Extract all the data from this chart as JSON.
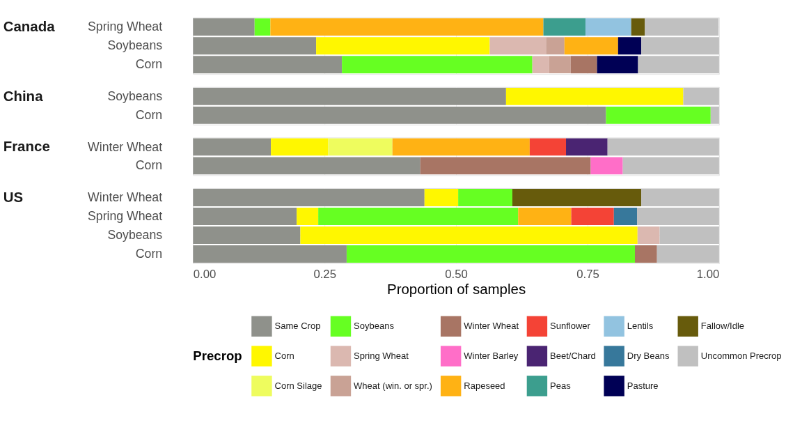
{
  "chart_data": [
    {
      "type": "bar",
      "orientation": "horizontal",
      "stacked": true,
      "title": "Canada",
      "categories": [
        "Spring Wheat",
        "Soybeans",
        "Corn"
      ],
      "xlim": [
        0,
        1
      ],
      "xticks": [
        0,
        0.25,
        0.5,
        0.75,
        1
      ],
      "tick_labels": "y",
      "grid": true,
      "series": [
        {
          "color": "#8f918b",
          "values": [
            0.117,
            0.234,
            0.283
          ]
        },
        {
          "color": "#fff700",
          "values": [
            null,
            0.33,
            null
          ]
        },
        {
          "color": "#66ff22",
          "values": [
            0.03,
            null,
            0.362
          ]
        },
        {
          "color": "#dbb8b0",
          "values": [
            null,
            0.107,
            0.032
          ]
        },
        {
          "color": "#c9a295",
          "values": [
            null,
            0.035,
            0.041
          ]
        },
        {
          "color": "#a87564",
          "values": [
            null,
            null,
            0.05
          ]
        },
        {
          "color": "#ffb214",
          "values": [
            0.519,
            0.102,
            null
          ]
        },
        {
          "color": "#3c9e8e",
          "values": [
            0.08,
            null,
            null
          ]
        },
        {
          "color": "#92c3e0",
          "values": [
            0.087,
            null,
            null
          ]
        },
        {
          "color": "#000055",
          "values": [
            null,
            0.044,
            0.078
          ]
        },
        {
          "color": "#675b0c",
          "values": [
            0.026,
            null,
            null
          ]
        },
        {
          "color": "#c0c0c0",
          "values": [
            0.14,
            0.148,
            0.154
          ]
        }
      ]
    },
    {
      "type": "bar",
      "orientation": "horizontal",
      "stacked": true,
      "title": "China",
      "categories": [
        "Soybeans",
        "Corn"
      ],
      "xlim": [
        0,
        1
      ],
      "xticks": [
        0,
        0.25,
        0.5,
        0.75,
        1
      ],
      "tick_labels": "y",
      "grid": true,
      "series": [
        {
          "color": "#8f918b",
          "values": [
            0.595,
            0.785
          ]
        },
        {
          "color": "#fff700",
          "values": [
            0.337,
            null
          ]
        },
        {
          "color": "#66ff22",
          "values": [
            null,
            0.199
          ]
        },
        {
          "color": "#c0c0c0",
          "values": [
            0.068,
            0.016
          ]
        }
      ]
    },
    {
      "type": "bar",
      "orientation": "horizontal",
      "stacked": true,
      "title": "France",
      "categories": [
        "Winter Wheat",
        "Corn"
      ],
      "xlim": [
        0,
        1
      ],
      "xticks": [
        0,
        0.25,
        0.5,
        0.75,
        1
      ],
      "tick_labels": "y",
      "grid": true,
      "series": [
        {
          "color": "#8f918b",
          "values": [
            0.148,
            0.432
          ]
        },
        {
          "color": "#fff700",
          "values": [
            0.109,
            null
          ]
        },
        {
          "color": "#eefc5e",
          "values": [
            0.122,
            null
          ]
        },
        {
          "color": "#a87564",
          "values": [
            null,
            0.324
          ]
        },
        {
          "color": "#ff6ec8",
          "values": [
            null,
            0.061
          ]
        },
        {
          "color": "#ffb214",
          "values": [
            0.261,
            null
          ]
        },
        {
          "color": "#f44336",
          "values": [
            0.069,
            null
          ]
        },
        {
          "color": "#4a2472",
          "values": [
            0.079,
            null
          ]
        },
        {
          "color": "#c0c0c0",
          "values": [
            0.212,
            0.183
          ]
        }
      ]
    },
    {
      "type": "bar",
      "orientation": "horizontal",
      "stacked": true,
      "title": "US",
      "categories": [
        "Winter Wheat",
        "Spring Wheat",
        "Soybeans",
        "Corn"
      ],
      "xlabel": "Proportion of samples",
      "legend_title": "Precrop",
      "xlim": [
        0,
        1
      ],
      "xticks": [
        {
          "value": 0,
          "label": "0.00"
        },
        {
          "value": 0.25,
          "label": "0.25"
        },
        {
          "value": 0.5,
          "label": "0.50"
        },
        {
          "value": 0.75,
          "label": "0.75"
        },
        {
          "value": 1,
          "label": "1.00"
        }
      ],
      "grid": true,
      "legend": "bottom",
      "series": [
        {
          "name": "Same Crop",
          "color": "#8f918b",
          "values": [
            0.44,
            0.197,
            0.204,
            0.292
          ]
        },
        {
          "name": "Corn",
          "color": "#fff700",
          "values": [
            0.064,
            0.041,
            0.641,
            null
          ]
        },
        {
          "name": "Corn Silage",
          "color": "#eefc5e",
          "values": [
            null,
            null,
            null,
            null
          ]
        },
        {
          "name": "Soybeans",
          "color": "#66ff22",
          "values": [
            0.103,
            0.38,
            null,
            0.548
          ]
        },
        {
          "name": "Spring Wheat",
          "color": "#dbb8b0",
          "values": [
            null,
            null,
            0.042,
            null
          ]
        },
        {
          "name": "Wheat (win. or spr.)",
          "color": "#c9a295",
          "values": [
            null,
            null,
            null,
            null
          ]
        },
        {
          "name": "Winter Wheat",
          "color": "#a87564",
          "values": [
            null,
            null,
            null,
            0.042
          ]
        },
        {
          "name": "Winter Barley",
          "color": "#ff6ec8",
          "values": [
            null,
            null,
            null,
            null
          ]
        },
        {
          "name": "Rapeseed",
          "color": "#ffb214",
          "values": [
            null,
            0.101,
            null,
            null
          ]
        },
        {
          "name": "Sunflower",
          "color": "#f44336",
          "values": [
            null,
            0.081,
            null,
            null
          ]
        },
        {
          "name": "Beet/Chard",
          "color": "#4a2472",
          "values": [
            null,
            null,
            null,
            null
          ]
        },
        {
          "name": "Peas",
          "color": "#3c9e8e",
          "values": [
            null,
            null,
            null,
            null
          ]
        },
        {
          "name": "Lentils",
          "color": "#92c3e0",
          "values": [
            null,
            null,
            null,
            null
          ]
        },
        {
          "name": "Dry Beans",
          "color": "#37789b",
          "values": [
            null,
            0.044,
            null,
            null
          ]
        },
        {
          "name": "Pasture",
          "color": "#000055",
          "values": [
            null,
            null,
            null,
            null
          ]
        },
        {
          "name": "Fallow/Idle",
          "color": "#675b0c",
          "values": [
            0.245,
            null,
            null,
            null
          ]
        },
        {
          "name": "Uncommon Precrop",
          "color": "#c0c0c0",
          "values": [
            0.148,
            0.156,
            0.113,
            0.118
          ]
        }
      ]
    }
  ]
}
